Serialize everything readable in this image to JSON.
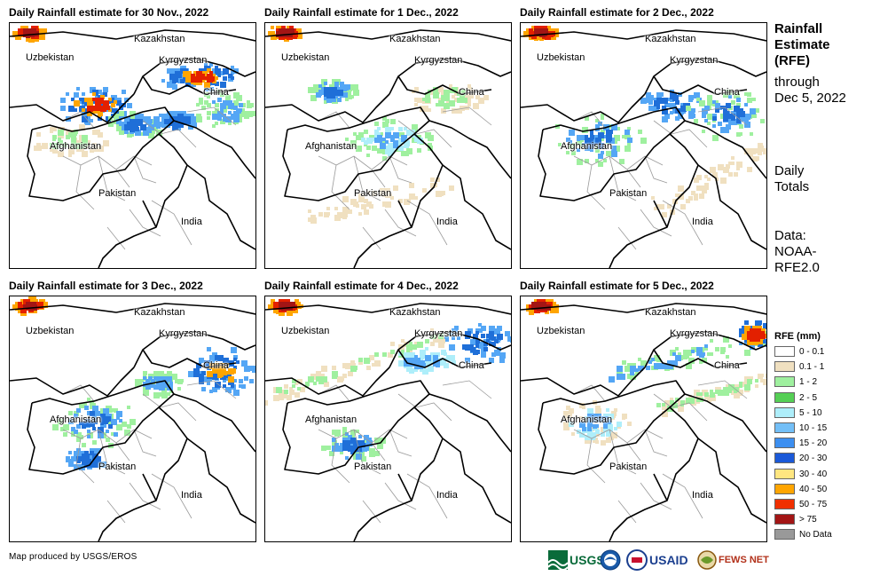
{
  "panels": [
    {
      "title": "Daily Rainfall estimate for 30 Nov., 2022",
      "rain": [
        {
          "shape": "blob",
          "cx": 95,
          "cy": 90,
          "rx": 42,
          "ry": 22,
          "colors": [
            "#54a6f5",
            "#1f6fd8",
            "#ffa500",
            "#e32000"
          ]
        },
        {
          "shape": "blob",
          "cx": 215,
          "cy": 58,
          "rx": 48,
          "ry": 14,
          "colors": [
            "#54a6f5",
            "#1f6fd8",
            "#ffa500",
            "#e32000"
          ]
        },
        {
          "shape": "blob",
          "cx": 140,
          "cy": 112,
          "rx": 34,
          "ry": 14,
          "colors": [
            "#9ff09f",
            "#54a6f5",
            "#1f6fd8"
          ]
        },
        {
          "shape": "blob",
          "cx": 185,
          "cy": 108,
          "rx": 26,
          "ry": 10,
          "colors": [
            "#54a6f5",
            "#1f6fd8"
          ]
        },
        {
          "shape": "blob",
          "cx": 65,
          "cy": 130,
          "rx": 42,
          "ry": 18,
          "colors": [
            "#f0e0c0",
            "#9ff09f"
          ]
        },
        {
          "shape": "blob",
          "cx": 240,
          "cy": 95,
          "rx": 35,
          "ry": 20,
          "colors": [
            "#9ff09f",
            "#54a6f5"
          ]
        },
        {
          "shape": "blob",
          "cx": 20,
          "cy": 8,
          "rx": 18,
          "ry": 7,
          "colors": [
            "#ffa500",
            "#e32000",
            "#a31515"
          ]
        }
      ]
    },
    {
      "title": "Daily Rainfall estimate for 1 Dec., 2022",
      "rain": [
        {
          "shape": "blob",
          "cx": 75,
          "cy": 75,
          "rx": 28,
          "ry": 14,
          "colors": [
            "#9ff09f",
            "#54a6f5",
            "#1f6fd8"
          ]
        },
        {
          "shape": "blob",
          "cx": 138,
          "cy": 128,
          "rx": 48,
          "ry": 22,
          "colors": [
            "#9ff09f",
            "#aeeefa",
            "#54a6f5"
          ]
        },
        {
          "shape": "blob",
          "cx": 200,
          "cy": 80,
          "rx": 45,
          "ry": 18,
          "colors": [
            "#f0e0c0",
            "#9ff09f"
          ]
        },
        {
          "shape": "band",
          "x1": 40,
          "y1": 215,
          "x2": 210,
          "y2": 180,
          "w": 22,
          "colors": [
            "#f0e0c0"
          ]
        },
        {
          "shape": "blob",
          "cx": 20,
          "cy": 8,
          "rx": 18,
          "ry": 7,
          "colors": [
            "#ffa500",
            "#e32000",
            "#a31515"
          ]
        }
      ]
    },
    {
      "title": "Daily Rainfall estimate for 2 Dec., 2022",
      "rain": [
        {
          "shape": "blob",
          "cx": 85,
          "cy": 128,
          "rx": 52,
          "ry": 30,
          "colors": [
            "#9ff09f",
            "#54a6f5",
            "#1f6fd8"
          ]
        },
        {
          "shape": "blob",
          "cx": 170,
          "cy": 88,
          "rx": 38,
          "ry": 18,
          "colors": [
            "#54a6f5",
            "#1f6fd8"
          ]
        },
        {
          "shape": "blob",
          "cx": 232,
          "cy": 100,
          "rx": 46,
          "ry": 28,
          "colors": [
            "#9ff09f",
            "#54a6f5",
            "#1f6fd8"
          ]
        },
        {
          "shape": "band",
          "x1": 150,
          "y1": 210,
          "x2": 275,
          "y2": 140,
          "w": 22,
          "colors": [
            "#f0e0c0"
          ]
        },
        {
          "shape": "blob",
          "cx": 20,
          "cy": 8,
          "rx": 18,
          "ry": 7,
          "colors": [
            "#ffa500",
            "#e32000",
            "#a31515"
          ]
        }
      ]
    },
    {
      "title": "Daily Rainfall estimate for 3 Dec., 2022",
      "rain": [
        {
          "shape": "blob",
          "cx": 235,
          "cy": 82,
          "rx": 42,
          "ry": 26,
          "colors": [
            "#54a6f5",
            "#1f6fd8",
            "#ffa500"
          ]
        },
        {
          "shape": "blob",
          "cx": 95,
          "cy": 140,
          "rx": 48,
          "ry": 28,
          "colors": [
            "#9ff09f",
            "#54a6f5",
            "#1f6fd8"
          ]
        },
        {
          "shape": "blob",
          "cx": 85,
          "cy": 180,
          "rx": 24,
          "ry": 12,
          "colors": [
            "#54a6f5",
            "#1f6fd8"
          ]
        },
        {
          "shape": "blob",
          "cx": 165,
          "cy": 95,
          "rx": 28,
          "ry": 14,
          "colors": [
            "#9ff09f",
            "#54a6f5"
          ]
        },
        {
          "shape": "blob",
          "cx": 20,
          "cy": 8,
          "rx": 18,
          "ry": 7,
          "colors": [
            "#ffa500",
            "#e32000",
            "#a31515"
          ]
        }
      ]
    },
    {
      "title": "Daily Rainfall estimate for 4 Dec., 2022",
      "rain": [
        {
          "shape": "blob",
          "cx": 240,
          "cy": 48,
          "rx": 40,
          "ry": 24,
          "colors": [
            "#54a6f5",
            "#1f6fd8"
          ]
        },
        {
          "shape": "band",
          "x1": 5,
          "y1": 110,
          "x2": 200,
          "y2": 40,
          "w": 18,
          "colors": [
            "#f0e0c0",
            "#9ff09f"
          ]
        },
        {
          "shape": "blob",
          "cx": 95,
          "cy": 165,
          "rx": 35,
          "ry": 20,
          "colors": [
            "#9ff09f",
            "#54a6f5",
            "#1f6fd8"
          ]
        },
        {
          "shape": "blob",
          "cx": 175,
          "cy": 70,
          "rx": 35,
          "ry": 12,
          "colors": [
            "#aeeefa",
            "#54a6f5"
          ]
        },
        {
          "shape": "blob",
          "cx": 20,
          "cy": 8,
          "rx": 18,
          "ry": 7,
          "colors": [
            "#ffa500",
            "#e32000",
            "#a31515"
          ]
        }
      ]
    },
    {
      "title": "Daily Rainfall estimate for 5 Dec., 2022",
      "rain": [
        {
          "shape": "band",
          "x1": 100,
          "y1": 85,
          "x2": 275,
          "y2": 45,
          "w": 20,
          "colors": [
            "#9ff09f",
            "#54a6f5"
          ]
        },
        {
          "shape": "blob",
          "cx": 262,
          "cy": 40,
          "rx": 20,
          "ry": 14,
          "colors": [
            "#1f6fd8",
            "#ffa500",
            "#e32000"
          ]
        },
        {
          "shape": "blob",
          "cx": 80,
          "cy": 140,
          "rx": 42,
          "ry": 24,
          "colors": [
            "#f0e0c0",
            "#aeeefa",
            "#54a6f5"
          ]
        },
        {
          "shape": "band",
          "x1": 150,
          "y1": 125,
          "x2": 275,
          "y2": 90,
          "w": 14,
          "colors": [
            "#f0e0c0",
            "#9ff09f"
          ]
        },
        {
          "shape": "blob",
          "cx": 20,
          "cy": 8,
          "rx": 18,
          "ry": 7,
          "colors": [
            "#ffa500",
            "#e32000",
            "#a31515"
          ]
        }
      ]
    }
  ],
  "country_labels": [
    "Kazakhstan",
    "Uzbekistan",
    "Kyrgyzstan",
    "China",
    "Afghanistan",
    "Pakistan",
    "India"
  ],
  "sidebar": {
    "title_lines": [
      "Rainfall",
      "Estimate",
      "(RFE)"
    ],
    "through_lines": [
      "through",
      "Dec 5, 2022"
    ],
    "daily_lines": [
      "Daily",
      "Totals"
    ],
    "data_lines": [
      "Data:",
      "NOAA-",
      "RFE2.0"
    ]
  },
  "legend": {
    "title": "RFE (mm)",
    "items": [
      {
        "label": "0 - 0.1",
        "color": "#ffffff"
      },
      {
        "label": "0.1 - 1",
        "color": "#f0e0c0"
      },
      {
        "label": "1 - 2",
        "color": "#9ff09f"
      },
      {
        "label": "2 - 5",
        "color": "#55cf55"
      },
      {
        "label": "5 - 10",
        "color": "#aeeefa"
      },
      {
        "label": "10 - 15",
        "color": "#73bff7"
      },
      {
        "label": "15 - 20",
        "color": "#3d8ff0"
      },
      {
        "label": "20 - 30",
        "color": "#1b59d8"
      },
      {
        "label": "30 - 40",
        "color": "#ffe680"
      },
      {
        "label": "40 - 50",
        "color": "#ffa500"
      },
      {
        "label": "50 - 75",
        "color": "#f03000"
      },
      {
        "label": "> 75",
        "color": "#a31515"
      },
      {
        "label": "No Data",
        "color": "#999999"
      }
    ]
  },
  "credit": "Map produced by USGS/EROS",
  "logos": {
    "usgs": "USGS",
    "usaid": "USAID",
    "fewsnet": "FEWS NET"
  }
}
